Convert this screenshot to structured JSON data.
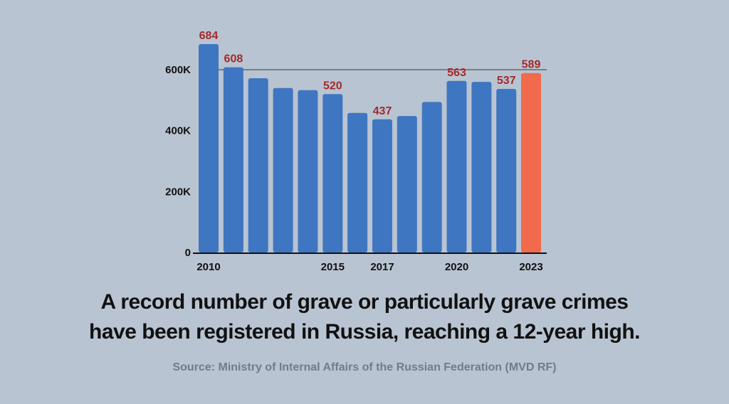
{
  "chart_data": {
    "type": "bar",
    "categories": [
      "2010",
      "2011",
      "2012",
      "2013",
      "2014",
      "2015",
      "2016",
      "2017",
      "2018",
      "2019",
      "2020",
      "2021",
      "2022",
      "2023"
    ],
    "values": [
      684,
      608,
      572,
      540,
      533,
      520,
      458,
      437,
      448,
      494,
      563,
      560,
      537,
      589
    ],
    "value_unit_note": "thousands",
    "data_labels": [
      {
        "index": 0,
        "text": "684"
      },
      {
        "index": 1,
        "text": "608"
      },
      {
        "index": 5,
        "text": "520"
      },
      {
        "index": 7,
        "text": "437"
      },
      {
        "index": 10,
        "text": "563"
      },
      {
        "index": 12,
        "text": "537"
      },
      {
        "index": 13,
        "text": "589"
      }
    ],
    "x_tick_labels": [
      {
        "index": 0,
        "text": "2010"
      },
      {
        "index": 5,
        "text": "2015"
      },
      {
        "index": 7,
        "text": "2017"
      },
      {
        "index": 10,
        "text": "2020"
      },
      {
        "index": 13,
        "text": "2023"
      }
    ],
    "y_ticks": [
      {
        "value": 0,
        "text": "0"
      },
      {
        "value": 200,
        "text": "200K"
      },
      {
        "value": 400,
        "text": "400K"
      },
      {
        "value": 600,
        "text": "600K"
      }
    ],
    "reference_line": {
      "value": 600
    },
    "ylim": [
      0,
      684
    ],
    "highlight_index": 13,
    "colors": {
      "bar": "#3f76c1",
      "highlight": "#f06a4b",
      "data_label": "#a32a2a",
      "background": "#b9c4d2",
      "axis": "#111111",
      "reference_line": "#555555"
    },
    "title": "",
    "xlabel": "",
    "ylabel": ""
  },
  "caption": {
    "line1": "A record number of grave or particularly grave crimes",
    "line2": "have been registered in Russia, reaching a 12-year high."
  },
  "source": "Source: Ministry of Internal Affairs of the Russian Federation (MVD RF)"
}
